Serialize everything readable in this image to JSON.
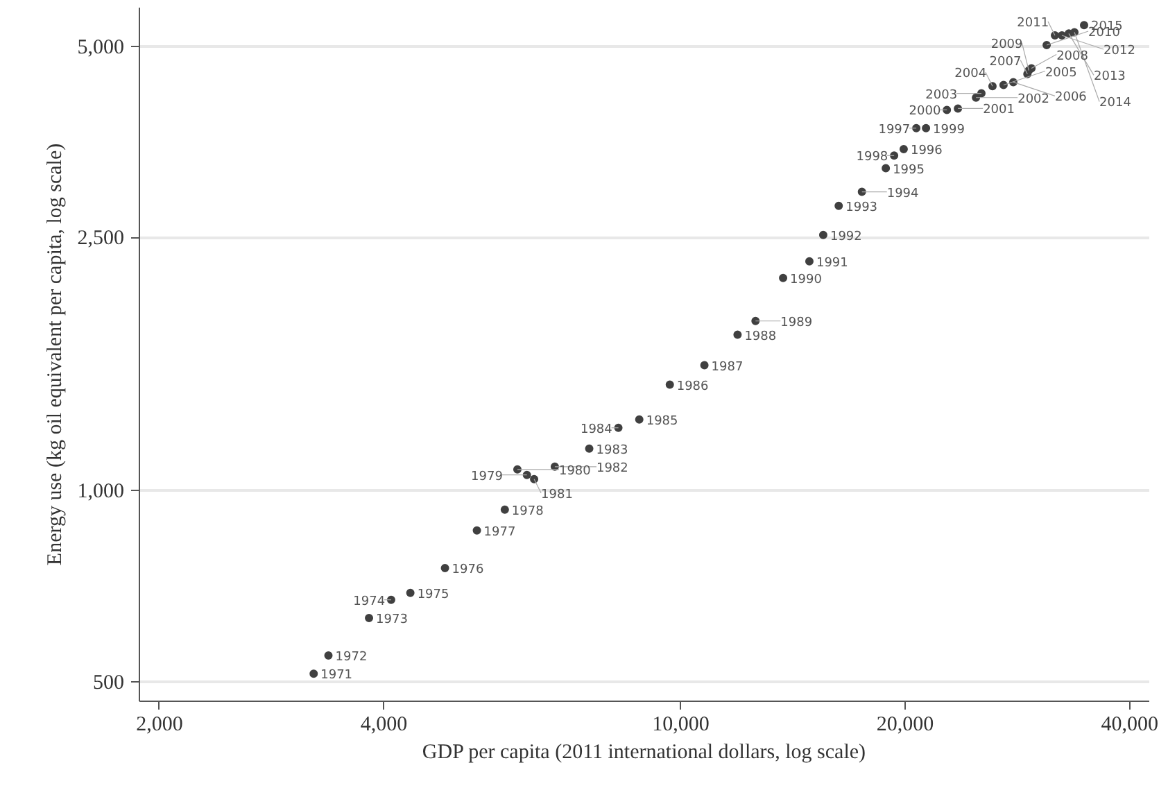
{
  "chart_data": {
    "type": "scatter",
    "xlabel": "GDP per capita (2011 international dollars, log scale)",
    "ylabel": "Energy use (kg oil equivalent per capita, log scale)",
    "log": "xy",
    "grid": "y",
    "marker": "circle",
    "xlim": [
      1880,
      42500
    ],
    "ylim": [
      466,
      5750
    ],
    "xticks": [
      {
        "value": 2000,
        "label": "2,000"
      },
      {
        "value": 4000,
        "label": "4,000"
      },
      {
        "value": 10000,
        "label": "10,000"
      },
      {
        "value": 20000,
        "label": "20,000"
      },
      {
        "value": 40000,
        "label": "40,000"
      }
    ],
    "yticks": [
      {
        "value": 500,
        "label": "500"
      },
      {
        "value": 1000,
        "label": "1,000"
      },
      {
        "value": 2500,
        "label": "2,500"
      },
      {
        "value": 5000,
        "label": "5,000"
      }
    ],
    "x": [
      3220,
      3370,
      3820,
      4090,
      4340,
      4830,
      5330,
      5810,
      6220,
      6040,
      6360,
      6780,
      7540,
      8250,
      8800,
      9670,
      10760,
      11920,
      12600,
      13720,
      14880,
      15530,
      16290,
      17500,
      18840,
      19910,
      20700,
      19330,
      21330,
      22750,
      23540,
      24890,
      25310,
      26190,
      27100,
      27930,
      29170,
      29540,
      29300,
      30960,
      31760,
      32450,
      33150,
      33730,
      34750
    ],
    "series": [
      {
        "color": "#404040",
        "values": [
          515,
          550,
          630,
          673,
          690,
          755,
          865,
          933,
          1058,
          1079,
          1042,
          1090,
          1164,
          1255,
          1293,
          1467,
          1574,
          1758,
          1848,
          2160,
          2294,
          2523,
          2804,
          2950,
          3213,
          3444,
          3716,
          3364,
          3716,
          3970,
          3990,
          4150,
          4215,
          4325,
          4345,
          4390,
          4520,
          4615,
          4580,
          5020,
          5200,
          5200,
          5235,
          5260,
          5395
        ]
      }
    ],
    "annotations": [
      {
        "text": "1971",
        "x": 3220,
        "y": 515
      },
      {
        "text": "1972",
        "x": 3370,
        "y": 550
      },
      {
        "text": "1973",
        "x": 3820,
        "y": 630
      },
      {
        "text": "1974",
        "x": 4090,
        "y": 673
      },
      {
        "text": "1975",
        "x": 4340,
        "y": 690
      },
      {
        "text": "1976",
        "x": 4830,
        "y": 755
      },
      {
        "text": "1977",
        "x": 5330,
        "y": 865
      },
      {
        "text": "1978",
        "x": 5810,
        "y": 933
      },
      {
        "text": "1979",
        "x": 6220,
        "y": 1058
      },
      {
        "text": "1980",
        "x": 6040,
        "y": 1079
      },
      {
        "text": "1981",
        "x": 6360,
        "y": 1042
      },
      {
        "text": "1982",
        "x": 6780,
        "y": 1090
      },
      {
        "text": "1983",
        "x": 7540,
        "y": 1164
      },
      {
        "text": "1984",
        "x": 8250,
        "y": 1255
      },
      {
        "text": "1985",
        "x": 8800,
        "y": 1293
      },
      {
        "text": "1986",
        "x": 9670,
        "y": 1467
      },
      {
        "text": "1987",
        "x": 10760,
        "y": 1574
      },
      {
        "text": "1988",
        "x": 11920,
        "y": 1758
      },
      {
        "text": "1989",
        "x": 12600,
        "y": 1848
      },
      {
        "text": "1990",
        "x": 13720,
        "y": 2160
      },
      {
        "text": "1991",
        "x": 14880,
        "y": 2294
      },
      {
        "text": "1992",
        "x": 15530,
        "y": 2523
      },
      {
        "text": "1993",
        "x": 16290,
        "y": 2804
      },
      {
        "text": "1994",
        "x": 17500,
        "y": 2950
      },
      {
        "text": "1995",
        "x": 18840,
        "y": 3213
      },
      {
        "text": "1996",
        "x": 19910,
        "y": 3444
      },
      {
        "text": "1997",
        "x": 20700,
        "y": 3716
      },
      {
        "text": "1998",
        "x": 19330,
        "y": 3364
      },
      {
        "text": "1999",
        "x": 21330,
        "y": 3716
      },
      {
        "text": "2000",
        "x": 22750,
        "y": 3970
      },
      {
        "text": "2001",
        "x": 23540,
        "y": 3990
      },
      {
        "text": "2002",
        "x": 24890,
        "y": 4150
      },
      {
        "text": "2003",
        "x": 25310,
        "y": 4215
      },
      {
        "text": "2004",
        "x": 26190,
        "y": 4325
      },
      {
        "text": "2005",
        "x": 27100,
        "y": 4345
      },
      {
        "text": "2006",
        "x": 27930,
        "y": 4390
      },
      {
        "text": "2007",
        "x": 29170,
        "y": 4520
      },
      {
        "text": "2008",
        "x": 29540,
        "y": 4615
      },
      {
        "text": "2009",
        "x": 29300,
        "y": 4580
      },
      {
        "text": "2010",
        "x": 30960,
        "y": 5020
      },
      {
        "text": "2011",
        "x": 31760,
        "y": 5200
      },
      {
        "text": "2012",
        "x": 32450,
        "y": 5200
      },
      {
        "text": "2013",
        "x": 33150,
        "y": 5235
      },
      {
        "text": "2014",
        "x": 33730,
        "y": 5260
      },
      {
        "text": "2015",
        "x": 34750,
        "y": 5395
      }
    ]
  }
}
